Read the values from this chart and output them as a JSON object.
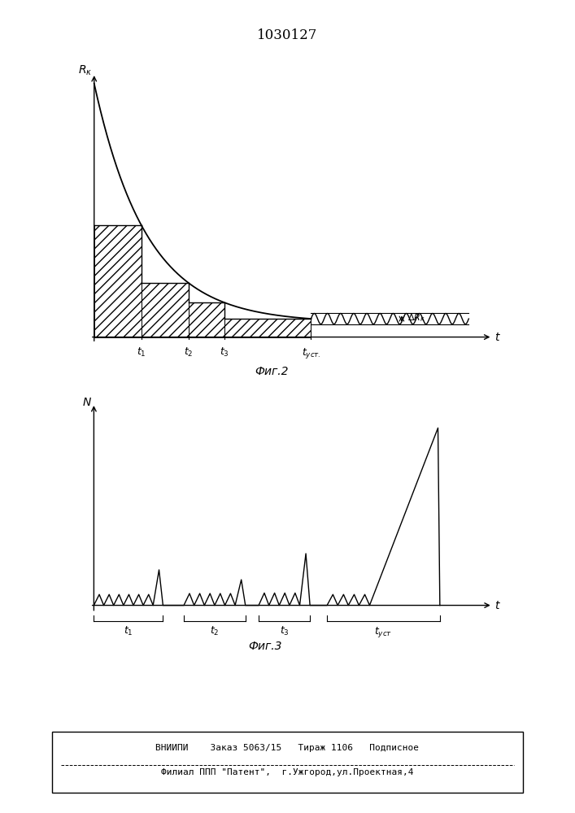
{
  "title": "1030127",
  "fig2_label": "Фиг.2",
  "fig3_label": "Фиг.3",
  "footer_line1": "ВНИИПИ    Заказ 5063/15   Тираж 1106   Подписное",
  "footer_line2": "Филиал ППП \"Патент\",  г.Ужгород,ул.Проектная,4"
}
